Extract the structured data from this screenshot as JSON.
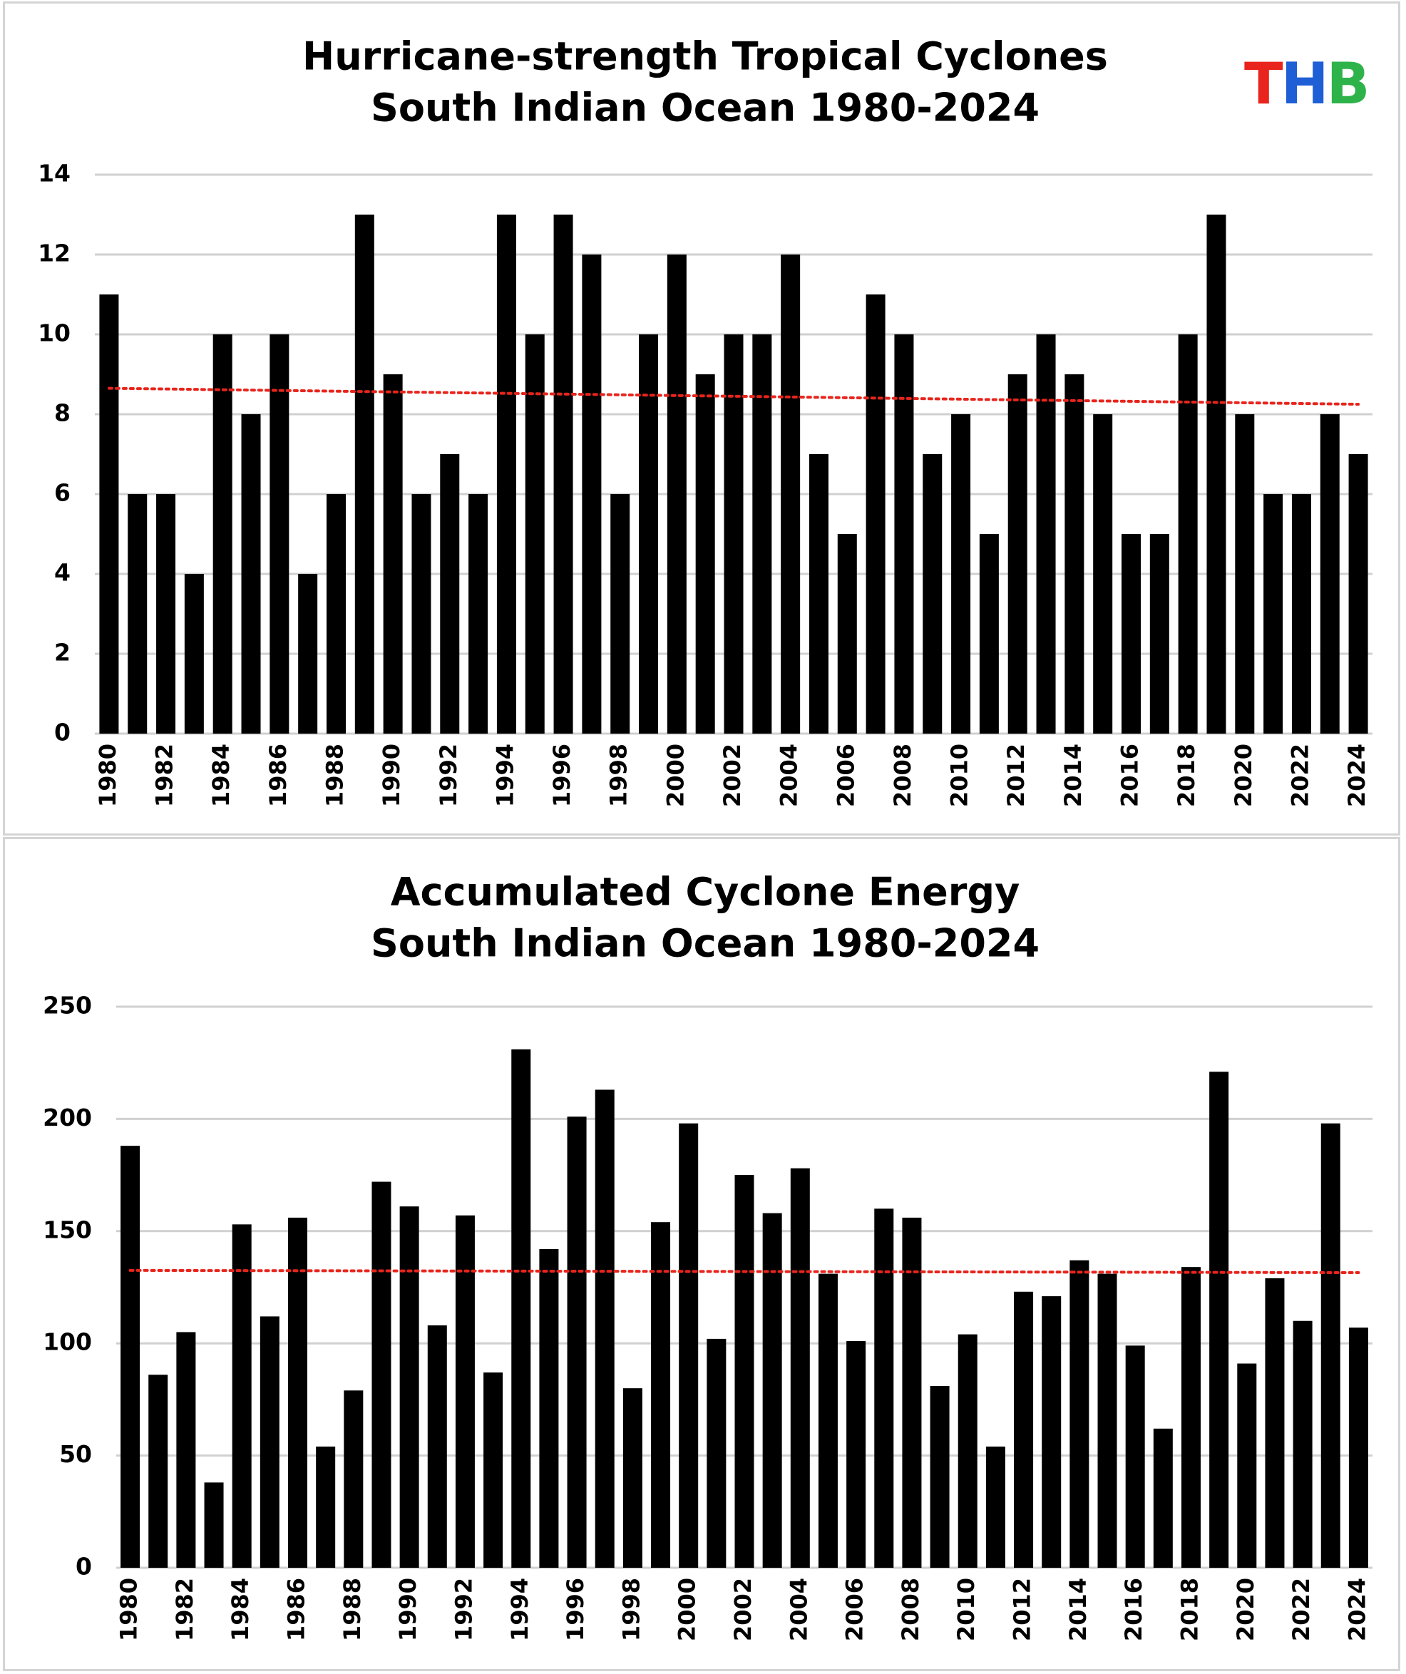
{
  "logo": {
    "letters": [
      "T",
      "H",
      "B"
    ],
    "colors": [
      "#e8241c",
      "#1f5fd6",
      "#2db34a"
    ]
  },
  "chart_data": [
    {
      "type": "bar",
      "title_lines": [
        "Hurricane-strength Tropical Cyclones",
        "South Indian Ocean 1980-2024"
      ],
      "x": [
        1980,
        1981,
        1982,
        1983,
        1984,
        1985,
        1986,
        1987,
        1988,
        1989,
        1990,
        1991,
        1992,
        1993,
        1994,
        1995,
        1996,
        1997,
        1998,
        1999,
        2000,
        2001,
        2002,
        2003,
        2004,
        2005,
        2006,
        2007,
        2008,
        2009,
        2010,
        2011,
        2012,
        2013,
        2014,
        2015,
        2016,
        2017,
        2018,
        2019,
        2020,
        2021,
        2022,
        2023,
        2024
      ],
      "x_tick_labels": [
        "1980",
        "1982",
        "1984",
        "1986",
        "1988",
        "1990",
        "1992",
        "1994",
        "1996",
        "1998",
        "2000",
        "2002",
        "2004",
        "2006",
        "2008",
        "2010",
        "2012",
        "2014",
        "2016",
        "2018",
        "2020",
        "2022",
        "2024"
      ],
      "values": [
        11,
        6,
        6,
        4,
        10,
        8,
        10,
        4,
        6,
        13,
        9,
        6,
        7,
        6,
        13,
        10,
        13,
        12,
        6,
        10,
        12,
        9,
        10,
        10,
        12,
        7,
        5,
        11,
        10,
        7,
        8,
        5,
        9,
        10,
        9,
        8,
        5,
        5,
        10,
        13,
        8,
        6,
        6,
        8,
        7
      ],
      "ylim": [
        0,
        14
      ],
      "y_ticks": [
        0,
        2,
        4,
        6,
        8,
        10,
        12,
        14
      ],
      "trendline": {
        "start": 8.65,
        "end": 8.25,
        "color": "#e8241c",
        "style": "dotted"
      },
      "bar_color": "#000000",
      "grid": true
    },
    {
      "type": "bar",
      "title_lines": [
        "Accumulated Cyclone Energy",
        "South Indian Ocean 1980-2024"
      ],
      "x": [
        1980,
        1981,
        1982,
        1983,
        1984,
        1985,
        1986,
        1987,
        1988,
        1989,
        1990,
        1991,
        1992,
        1993,
        1994,
        1995,
        1996,
        1997,
        1998,
        1999,
        2000,
        2001,
        2002,
        2003,
        2004,
        2005,
        2006,
        2007,
        2008,
        2009,
        2010,
        2011,
        2012,
        2013,
        2014,
        2015,
        2016,
        2017,
        2018,
        2019,
        2020,
        2021,
        2022,
        2023,
        2024
      ],
      "x_tick_labels": [
        "1980",
        "1982",
        "1984",
        "1986",
        "1988",
        "1990",
        "1992",
        "1994",
        "1996",
        "1998",
        "2000",
        "2002",
        "2004",
        "2006",
        "2008",
        "2010",
        "2012",
        "2014",
        "2016",
        "2018",
        "2020",
        "2022",
        "2024"
      ],
      "values": [
        188,
        86,
        105,
        38,
        153,
        112,
        156,
        54,
        79,
        172,
        161,
        108,
        157,
        87,
        231,
        142,
        201,
        213,
        80,
        154,
        198,
        102,
        175,
        158,
        178,
        131,
        101,
        160,
        156,
        81,
        104,
        54,
        123,
        121,
        137,
        131,
        99,
        62,
        134,
        221,
        91,
        129,
        110,
        198,
        107
      ],
      "ylim": [
        0,
        250
      ],
      "y_ticks": [
        0,
        50,
        100,
        150,
        200,
        250
      ],
      "trendline": {
        "start": 132.5,
        "end": 131.5,
        "color": "#e8241c",
        "style": "dotted"
      },
      "bar_color": "#000000",
      "grid": true
    }
  ]
}
